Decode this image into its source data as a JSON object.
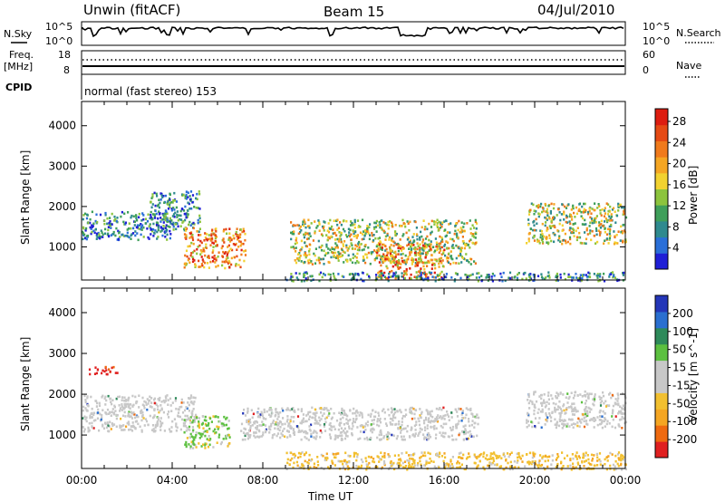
{
  "header": {
    "station": "Unwin (fitACF)",
    "beam": "Beam 15",
    "date": "04/Jul/2010"
  },
  "colors": {
    "power_scale": [
      "#1f1fd6",
      "#2a6fd8",
      "#2f8a8f",
      "#3f9f5a",
      "#8cc43d",
      "#f2d230",
      "#f5a623",
      "#f07a1c",
      "#e54a14",
      "#dd1d10"
    ],
    "velocity_scale": [
      "#2436b8",
      "#2a6fd0",
      "#2e8a5a",
      "#5cc040",
      "#c8c8c8",
      "#c8c8c8",
      "#f2c030",
      "#f5a623",
      "#ef6a10",
      "#e02020"
    ]
  },
  "panels": {
    "nsky": {
      "label": "N.Sky",
      "ticks_left": [
        "10^5",
        "10^0"
      ],
      "ticks_right": [
        "10^5",
        "10^0"
      ],
      "right_label": "N.Search"
    },
    "freq": {
      "label_line1": "Freq.",
      "label_line2": "[MHz]",
      "ticks_left": [
        "18",
        "8"
      ],
      "ticks_right": [
        "60",
        "0"
      ],
      "right_label": "Nave"
    },
    "cpid": {
      "label": "CPID",
      "text": "normal (fast stereo) 153"
    }
  },
  "chart_data": [
    {
      "type": "heatmap",
      "title": "",
      "ylabel": "Slant Range [km]",
      "xlabel": "Time UT",
      "x_ticks": [
        "00:00",
        "04:00",
        "08:00",
        "12:00",
        "16:00",
        "20:00",
        "00:00"
      ],
      "y_ticks": [
        1000,
        2000,
        3000,
        4000
      ],
      "xlim_hours": [
        0,
        24
      ],
      "ylim_km": [
        180,
        4600
      ],
      "colorbar": {
        "label": "Power [dB]",
        "ticks": [
          "4",
          "8",
          "12",
          "16",
          "20",
          "24",
          "28"
        ],
        "range": [
          0,
          30
        ]
      },
      "regions": [
        {
          "t": [
            0.0,
            3.9
          ],
          "r": [
            1200,
            1900
          ],
          "level": "low"
        },
        {
          "t": [
            3.0,
            5.2
          ],
          "r": [
            1400,
            2400
          ],
          "level": "low"
        },
        {
          "t": [
            4.5,
            7.2
          ],
          "r": [
            500,
            1500
          ],
          "level": "high"
        },
        {
          "t": [
            9.2,
            17.4
          ],
          "r": [
            600,
            1700
          ],
          "level": "mid"
        },
        {
          "t": [
            13.0,
            16.0
          ],
          "r": [
            250,
            1100
          ],
          "level": "high"
        },
        {
          "t": [
            9.0,
            24.0
          ],
          "r": [
            180,
            400
          ],
          "level": "low"
        },
        {
          "t": [
            19.6,
            24.0
          ],
          "r": [
            1100,
            2100
          ],
          "level": "mid"
        }
      ]
    },
    {
      "type": "heatmap",
      "title": "",
      "ylabel": "Slant Range [km]",
      "xlabel": "Time UT",
      "x_ticks": [
        "00:00",
        "04:00",
        "08:00",
        "12:00",
        "16:00",
        "20:00",
        "00:00"
      ],
      "y_ticks": [
        1000,
        2000,
        3000,
        4000
      ],
      "xlim_hours": [
        0,
        24
      ],
      "ylim_km": [
        180,
        4600
      ],
      "colorbar": {
        "label": "Velocity [m s^-1]",
        "ticks": [
          "200",
          "100",
          "50",
          "15",
          "-15",
          "-50",
          "-100",
          "-200"
        ],
        "range": [
          -250,
          250
        ]
      },
      "regions": [
        {
          "t": [
            0.0,
            5.0
          ],
          "r": [
            1100,
            2000
          ],
          "level": "grey"
        },
        {
          "t": [
            4.5,
            6.5
          ],
          "r": [
            700,
            1500
          ],
          "level": "green"
        },
        {
          "t": [
            0.3,
            1.6
          ],
          "r": [
            2500,
            2700
          ],
          "level": "red"
        },
        {
          "t": [
            7.0,
            17.5
          ],
          "r": [
            900,
            1700
          ],
          "level": "grey"
        },
        {
          "t": [
            9.0,
            24.0
          ],
          "r": [
            180,
            600
          ],
          "level": "orange"
        },
        {
          "t": [
            19.6,
            24.0
          ],
          "r": [
            1200,
            2100
          ],
          "level": "grey"
        }
      ]
    }
  ],
  "time_axis_label": "Time UT"
}
